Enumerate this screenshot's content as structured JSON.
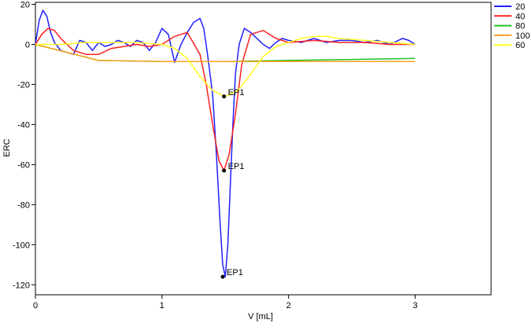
{
  "chart_data": {
    "type": "line",
    "title": "",
    "xlabel": "V [mL]",
    "ylabel": "ERC",
    "xlim": [
      0,
      3.6
    ],
    "ylim": [
      -125,
      21
    ],
    "xticks": [
      0,
      1,
      2,
      3
    ],
    "yticks": [
      20,
      0,
      -20,
      -40,
      -60,
      -80,
      -100,
      -120
    ],
    "grid": false,
    "legend_position": "right",
    "series": [
      {
        "name": "20",
        "color": "#2020ff",
        "x": [
          0.0,
          0.03,
          0.06,
          0.09,
          0.12,
          0.15,
          0.2,
          0.25,
          0.3,
          0.35,
          0.4,
          0.45,
          0.5,
          0.55,
          0.6,
          0.65,
          0.7,
          0.75,
          0.8,
          0.85,
          0.9,
          0.95,
          1.0,
          1.05,
          1.1,
          1.15,
          1.2,
          1.25,
          1.3,
          1.33,
          1.36,
          1.4,
          1.43,
          1.46,
          1.48,
          1.5,
          1.52,
          1.54,
          1.56,
          1.58,
          1.61,
          1.65,
          1.7,
          1.75,
          1.8,
          1.85,
          1.9,
          1.95,
          2.0,
          2.1,
          2.2,
          2.3,
          2.4,
          2.5,
          2.6,
          2.7,
          2.8,
          2.9,
          2.95,
          3.0
        ],
        "y": [
          0,
          12,
          17,
          14,
          6,
          1,
          -3,
          -4,
          -5,
          2,
          1,
          -3,
          1,
          -1,
          0,
          2,
          1,
          -1,
          2,
          1,
          -3,
          1,
          8,
          5,
          -9,
          0,
          6,
          11,
          13,
          8,
          -5,
          -25,
          -55,
          -90,
          -110,
          -116,
          -100,
          -70,
          -40,
          -15,
          0,
          8,
          6,
          3,
          0,
          -2,
          1,
          3,
          2,
          1,
          3,
          1,
          2,
          2,
          1,
          2,
          0,
          3,
          2,
          0
        ]
      },
      {
        "name": "40",
        "color": "#ff2020",
        "x": [
          0.0,
          0.05,
          0.1,
          0.15,
          0.2,
          0.3,
          0.4,
          0.5,
          0.6,
          0.7,
          0.8,
          0.9,
          1.0,
          1.1,
          1.2,
          1.3,
          1.35,
          1.4,
          1.45,
          1.49,
          1.53,
          1.58,
          1.63,
          1.7,
          1.8,
          1.9,
          2.0,
          2.2,
          2.4,
          2.6,
          2.8,
          3.0
        ],
        "y": [
          0,
          5,
          8,
          7,
          3,
          -3,
          -5,
          -5,
          -2,
          -1,
          0,
          -1,
          0,
          4,
          6,
          -5,
          -20,
          -40,
          -58,
          -63,
          -55,
          -35,
          -10,
          5,
          7,
          3,
          1,
          2,
          1,
          1,
          0,
          0
        ]
      },
      {
        "name": "80",
        "color": "#20c020",
        "x": [
          0.0,
          0.5,
          1.0,
          1.5,
          2.0,
          2.5,
          3.0
        ],
        "y": [
          0,
          -8,
          -8.5,
          -8.5,
          -8,
          -7.5,
          -7
        ]
      },
      {
        "name": "100",
        "color": "#ffa020",
        "x": [
          0.0,
          0.5,
          1.0,
          1.5,
          2.0,
          2.5,
          3.0
        ],
        "y": [
          0,
          -8,
          -8.5,
          -8.5,
          -8.5,
          -8.5,
          -8.5
        ]
      },
      {
        "name": "60",
        "color": "#ffff20",
        "x": [
          0.0,
          0.2,
          0.4,
          0.6,
          0.8,
          1.0,
          1.1,
          1.2,
          1.3,
          1.4,
          1.5,
          1.6,
          1.7,
          1.8,
          1.9,
          2.0,
          2.1,
          2.2,
          2.3,
          2.4,
          2.6,
          2.8,
          3.0
        ],
        "y": [
          0,
          0,
          1,
          1,
          1,
          0,
          -2,
          -7,
          -16,
          -23,
          -26,
          -23,
          -15,
          -6,
          -1,
          1,
          3,
          4,
          4,
          3,
          2,
          1,
          0
        ]
      }
    ],
    "annotations": [
      {
        "label": "EP1",
        "x": 1.49,
        "y": -26
      },
      {
        "label": "EP1",
        "x": 1.49,
        "y": -63
      },
      {
        "label": "EP1",
        "x": 1.48,
        "y": -116
      }
    ]
  }
}
